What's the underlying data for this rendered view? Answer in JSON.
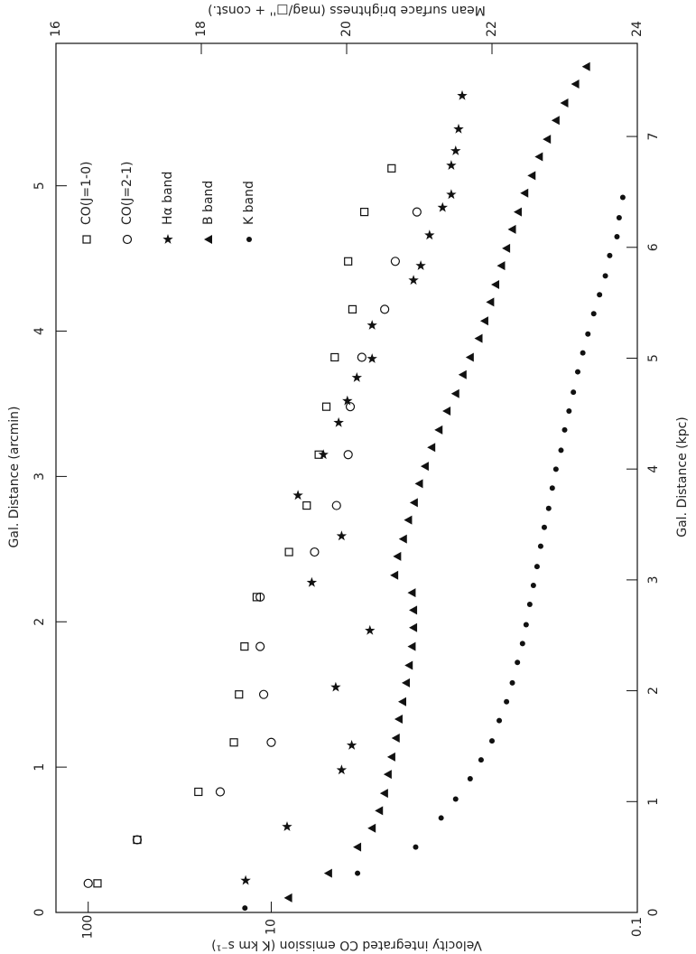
{
  "chart_data": {
    "type": "scatter",
    "xlabel": "Gal. Distance (arcmin)",
    "x2label": "Gal. Distance (kpc)",
    "ylabel": "Velocity integrated CO emission (K km s⁻¹)",
    "y2label": "Mean surface brightness (mag/□'' + const.)",
    "xlim": [
      0,
      5.98
    ],
    "xticks": [
      0,
      1,
      2,
      3,
      4,
      5
    ],
    "x2lim": [
      0,
      7.84
    ],
    "x2ticks": [
      0,
      1,
      2,
      3,
      4,
      5,
      6,
      7
    ],
    "ylim": [
      0.1,
      150
    ],
    "yticks": [
      100,
      10,
      0.1
    ],
    "ylog": true,
    "y2lim": [
      16,
      24
    ],
    "y2ticks": [
      16,
      18,
      20,
      22,
      24
    ],
    "legend": "upper left",
    "series": [
      {
        "name": "CO(J=1-0)",
        "marker": "square",
        "color": "#111",
        "x": [
          0.2,
          0.5,
          0.83,
          1.17,
          1.5,
          1.83,
          2.17,
          2.48,
          2.8,
          3.15,
          3.48,
          3.82,
          4.15,
          4.48,
          4.82,
          5.12
        ],
        "values": [
          89,
          54,
          25,
          16,
          15,
          14,
          12,
          8.0,
          6.4,
          5.5,
          5.0,
          4.5,
          3.6,
          3.8,
          3.1,
          2.2
        ]
      },
      {
        "name": "CO(J=2-1)",
        "marker": "circle",
        "color": "#111",
        "x": [
          0.2,
          0.5,
          0.83,
          1.17,
          1.5,
          1.83,
          2.17,
          2.48,
          2.8,
          3.15,
          3.48,
          3.82,
          4.15,
          4.48,
          4.82
        ],
        "values": [
          100,
          54,
          19,
          10,
          11,
          11.5,
          11.5,
          5.8,
          4.4,
          3.8,
          3.7,
          3.2,
          2.4,
          2.1,
          1.6
        ]
      },
      {
        "name": "Hα band",
        "marker": "star",
        "color": "#111",
        "axis": "y2",
        "x": [
          0.22,
          0.59,
          0.98,
          1.15,
          1.55,
          1.94,
          2.27,
          2.59,
          2.87,
          3.15,
          3.37,
          3.52,
          3.68,
          3.81,
          4.04,
          4.35,
          4.45,
          4.66,
          4.85,
          4.94,
          5.14,
          5.24,
          5.39,
          5.62
        ],
        "values": [
          18.61,
          19.18,
          19.93,
          20.07,
          19.85,
          20.32,
          19.52,
          19.93,
          19.33,
          19.68,
          19.89,
          20.01,
          20.14,
          20.35,
          20.35,
          20.92,
          21.02,
          21.14,
          21.32,
          21.44,
          21.44,
          21.5,
          21.54,
          21.59
        ]
      },
      {
        "name": "B band",
        "marker": "triangle",
        "color": "#111",
        "axis": "y2",
        "x": [
          0.1,
          0.27,
          0.45,
          0.58,
          0.7,
          0.82,
          0.95,
          1.07,
          1.2,
          1.33,
          1.45,
          1.58,
          1.7,
          1.83,
          1.96,
          2.08,
          2.2,
          2.32,
          2.45,
          2.57,
          2.7,
          2.82,
          2.95,
          3.07,
          3.2,
          3.32,
          3.45,
          3.57,
          3.7,
          3.82,
          3.95,
          4.07,
          4.2,
          4.32,
          4.45,
          4.57,
          4.7,
          4.82,
          4.95,
          5.07,
          5.2,
          5.32,
          5.45,
          5.57,
          5.7,
          5.82
        ],
        "values": [
          19.2,
          19.75,
          20.15,
          20.35,
          20.45,
          20.52,
          20.57,
          20.62,
          20.68,
          20.72,
          20.77,
          20.82,
          20.86,
          20.9,
          20.92,
          20.92,
          20.9,
          20.66,
          20.7,
          20.78,
          20.85,
          20.93,
          21.0,
          21.08,
          21.17,
          21.27,
          21.38,
          21.5,
          21.6,
          21.7,
          21.82,
          21.9,
          21.98,
          22.05,
          22.13,
          22.2,
          22.28,
          22.36,
          22.45,
          22.55,
          22.65,
          22.76,
          22.88,
          23.0,
          23.15,
          23.3
        ]
      },
      {
        "name": "K band",
        "marker": "dot",
        "color": "#111",
        "axis": "y2",
        "x": [
          0.03,
          0.27,
          0.45,
          0.65,
          0.78,
          0.92,
          1.05,
          1.18,
          1.32,
          1.45,
          1.58,
          1.72,
          1.85,
          1.98,
          2.12,
          2.25,
          2.38,
          2.52,
          2.65,
          2.78,
          2.92,
          3.05,
          3.18,
          3.32,
          3.45,
          3.58,
          3.72,
          3.85,
          3.98,
          4.12,
          4.25,
          4.38,
          4.52,
          4.65,
          4.78,
          4.92
        ],
        "values": [
          18.6,
          20.15,
          20.95,
          21.3,
          21.5,
          21.7,
          21.85,
          22.0,
          22.1,
          22.2,
          22.28,
          22.35,
          22.42,
          22.47,
          22.52,
          22.57,
          22.62,
          22.67,
          22.72,
          22.78,
          22.83,
          22.88,
          22.95,
          23.0,
          23.06,
          23.12,
          23.18,
          23.25,
          23.32,
          23.4,
          23.48,
          23.56,
          23.62,
          23.72,
          23.75,
          23.8
        ]
      }
    ]
  }
}
